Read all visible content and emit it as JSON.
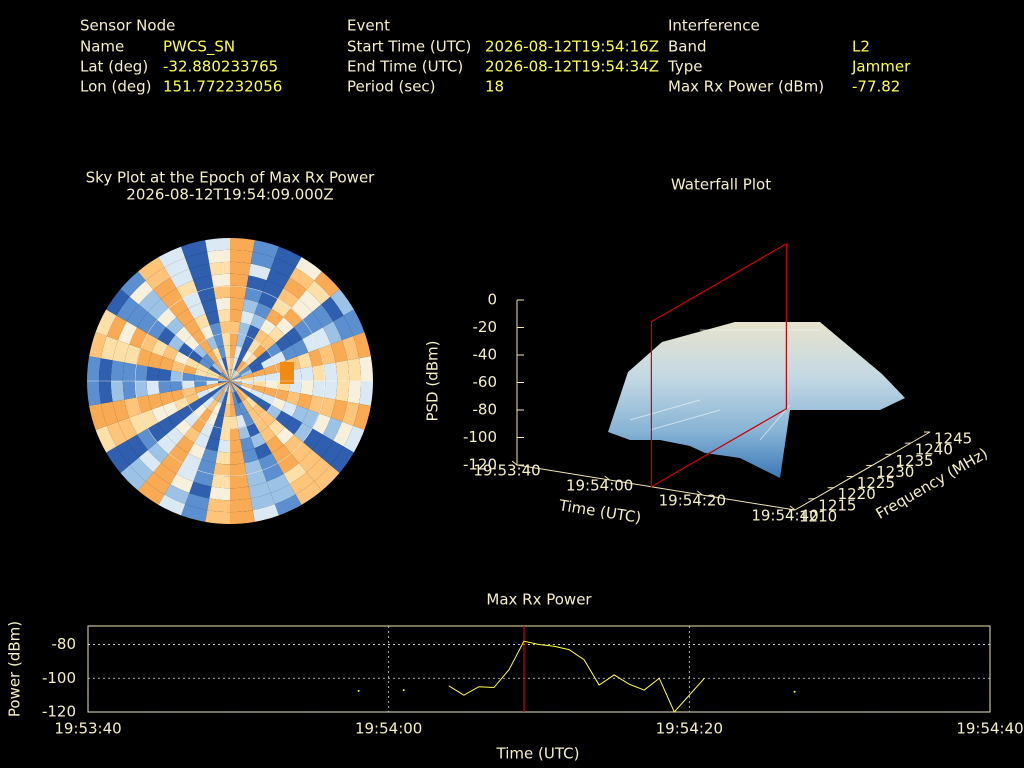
{
  "header": {
    "sensor": {
      "title": "Sensor Node",
      "rows": [
        [
          "Name",
          "PWCS_SN"
        ],
        [
          "Lat (deg)",
          "-32.880233765"
        ],
        [
          "Lon (deg)",
          "151.772232056"
        ]
      ]
    },
    "event": {
      "title": "Event",
      "rows": [
        [
          "Start Time (UTC)",
          "2026-08-12T19:54:16Z"
        ],
        [
          "End Time (UTC)",
          "2026-08-12T19:54:34Z"
        ],
        [
          "Period (sec)",
          "18"
        ]
      ]
    },
    "interference": {
      "title": "Interference",
      "rows": [
        [
          "Band",
          "L2"
        ],
        [
          "Type",
          "Jammer"
        ],
        [
          "Max Rx Power (dBm)",
          "-77.82"
        ]
      ]
    }
  },
  "chart_data": [
    {
      "type": "skyplot",
      "title": "Sky Plot at the Epoch of Max Rx Power",
      "subtitle": "2026-08-12T19:54:09.000Z"
    },
    {
      "type": "waterfall",
      "title": "Waterfall Plot",
      "zlabel": "PSD (dBm)",
      "xlabel": "Time (UTC)",
      "ylabel": "Frequency (MHz)",
      "zlim": [
        -120,
        0
      ],
      "zticks": [
        0,
        -20,
        -40,
        -60,
        -80,
        -100,
        -120
      ],
      "xlim": [
        "19:53:40",
        "19:54:40"
      ],
      "xticks": [
        "19:53:40",
        "19:54:00",
        "19:54:20",
        "19:54:40"
      ],
      "ylim": [
        1210,
        1245
      ],
      "yticks": [
        1210,
        1215,
        1220,
        1225,
        1230,
        1235,
        1240,
        1245
      ],
      "marker": "19:54:09",
      "marker_color": "#cc0000"
    },
    {
      "type": "line",
      "title": "Max Rx Power",
      "xlabel": "Time (UTC)",
      "ylabel": "Power (dBm)",
      "xlim": [
        "19:53:40",
        "19:54:40"
      ],
      "xticks": [
        "19:53:40",
        "19:54:00",
        "19:54:20",
        "19:54:40"
      ],
      "ylim": [
        -120,
        -69
      ],
      "yticks": [
        -80,
        -100,
        -120
      ],
      "grid": true,
      "marker": "19:54:09",
      "marker_color": "#dd0000",
      "x": [
        "19:53:58",
        "19:53:59",
        "19:54:01",
        "19:54:02",
        "19:54:04",
        "19:54:05",
        "19:54:06",
        "19:54:07",
        "19:54:08",
        "19:54:09",
        "19:54:10",
        "19:54:11",
        "19:54:12",
        "19:54:13",
        "19:54:14",
        "19:54:15",
        "19:54:16",
        "19:54:17",
        "19:54:18",
        "19:54:19",
        "19:54:20",
        "19:54:21",
        "19:54:22",
        "19:54:27"
      ],
      "series": [
        {
          "color": "#ffff33",
          "values": [
            -107.5,
            null,
            -107,
            null,
            -104.5,
            -110,
            -105,
            -105.5,
            -95,
            -78,
            -80,
            -81,
            -83,
            -89,
            -104,
            -98,
            -103.5,
            -107,
            -100,
            -120,
            -110,
            -100,
            null,
            -108
          ]
        }
      ]
    }
  ]
}
